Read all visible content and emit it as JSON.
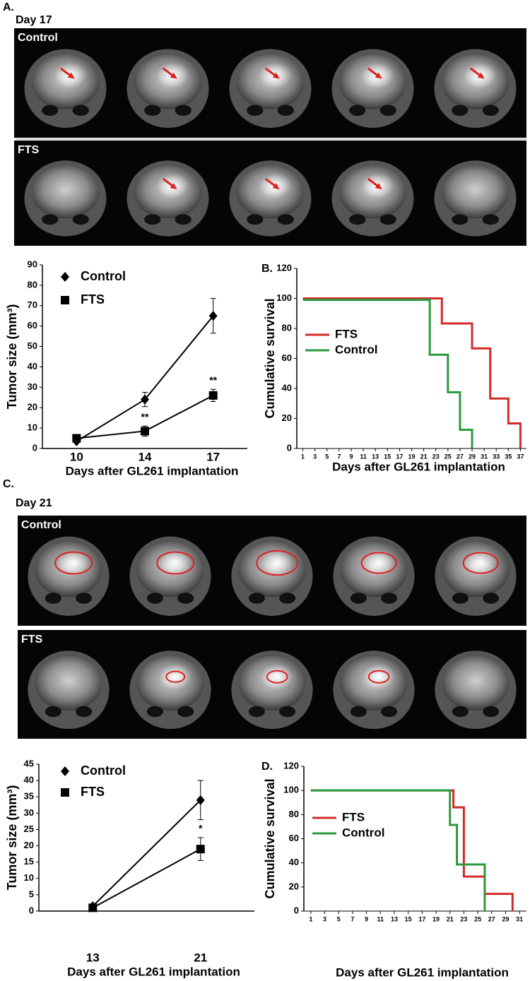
{
  "panels": {
    "a_label": "A.",
    "a_day": "Day 17",
    "a_control": "Control",
    "a_fts": "FTS",
    "c_label": "C.",
    "c_day": "Day 21",
    "c_control": "Control",
    "c_fts": "FTS"
  },
  "chart_data": [
    {
      "type": "line",
      "y_label": "Tumor size (mm³)",
      "x_label": "Days after GL261 implantation",
      "categories": [
        "10",
        "14",
        "17"
      ],
      "ylim": [
        0,
        90
      ],
      "yticks": [
        0,
        10,
        20,
        30,
        40,
        50,
        60,
        70,
        80,
        90
      ],
      "series": [
        {
          "name": "Control",
          "color": "#000000",
          "marker": "diamond",
          "values": [
            3.5,
            24,
            65
          ],
          "errors": [
            0.5,
            3.5,
            8.5
          ]
        },
        {
          "name": "FTS",
          "color": "#000000",
          "marker": "square",
          "values": [
            5,
            8.5,
            26
          ],
          "errors": [
            1,
            2.5,
            3
          ]
        }
      ],
      "annotations": [
        {
          "text": "**",
          "x": "14"
        },
        {
          "text": "**",
          "x": "17"
        }
      ]
    },
    {
      "type": "step",
      "panel_label": "B.",
      "y_label": "Cumulative survival",
      "x_label": "Days after GL261 implantation",
      "xlim": [
        0,
        38
      ],
      "xticks": [
        1,
        3,
        5,
        7,
        9,
        11,
        13,
        15,
        17,
        19,
        21,
        23,
        25,
        27,
        29,
        31,
        33,
        35,
        37
      ],
      "ylim": [
        0,
        120
      ],
      "yticks": [
        0,
        20,
        40,
        60,
        80,
        100,
        120
      ],
      "series": [
        {
          "name": "FTS",
          "color": "#d42a2a",
          "x": [
            1,
            24,
            29,
            32,
            35,
            37
          ],
          "values": [
            100,
            83.3,
            66.7,
            33.3,
            16.7,
            0
          ]
        },
        {
          "name": "Control",
          "color": "#2a9b3c",
          "x": [
            1,
            22,
            25,
            27,
            29
          ],
          "values": [
            99,
            62.5,
            37.5,
            12.5,
            0
          ]
        }
      ]
    },
    {
      "type": "line",
      "y_label": "Tumor size (mm³)",
      "x_label": "Days after GL261 implantation",
      "categories": [
        "13",
        "21"
      ],
      "ylim": [
        0,
        45
      ],
      "yticks": [
        0,
        5,
        10,
        15,
        20,
        25,
        30,
        35,
        40,
        45
      ],
      "series": [
        {
          "name": "Control",
          "color": "#000000",
          "marker": "diamond",
          "values": [
            1.5,
            34
          ],
          "errors": [
            0.4,
            6
          ]
        },
        {
          "name": "FTS",
          "color": "#000000",
          "marker": "square",
          "values": [
            1,
            19
          ],
          "errors": [
            0.4,
            3.5
          ]
        }
      ],
      "annotations": [
        {
          "text": "*",
          "x": "21"
        }
      ]
    },
    {
      "type": "step",
      "panel_label": "D.",
      "y_label": "Cumulative survival",
      "x_label": "Days after GL261 implantation",
      "xlim": [
        0,
        32
      ],
      "xticks": [
        1,
        3,
        5,
        7,
        9,
        11,
        13,
        15,
        17,
        19,
        21,
        23,
        25,
        27,
        29,
        31
      ],
      "ylim": [
        0,
        120
      ],
      "yticks": [
        0,
        20,
        40,
        60,
        80,
        100,
        120
      ],
      "series": [
        {
          "name": "FTS",
          "color": "#d42a2a",
          "x": [
            1,
            21.5,
            23,
            26,
            30
          ],
          "values": [
            100,
            86,
            28.6,
            14.3,
            0
          ]
        },
        {
          "name": "Control",
          "color": "#2a9b3c",
          "x": [
            1,
            21,
            22,
            26
          ],
          "values": [
            100,
            71.4,
            38.6,
            0
          ]
        }
      ]
    }
  ]
}
